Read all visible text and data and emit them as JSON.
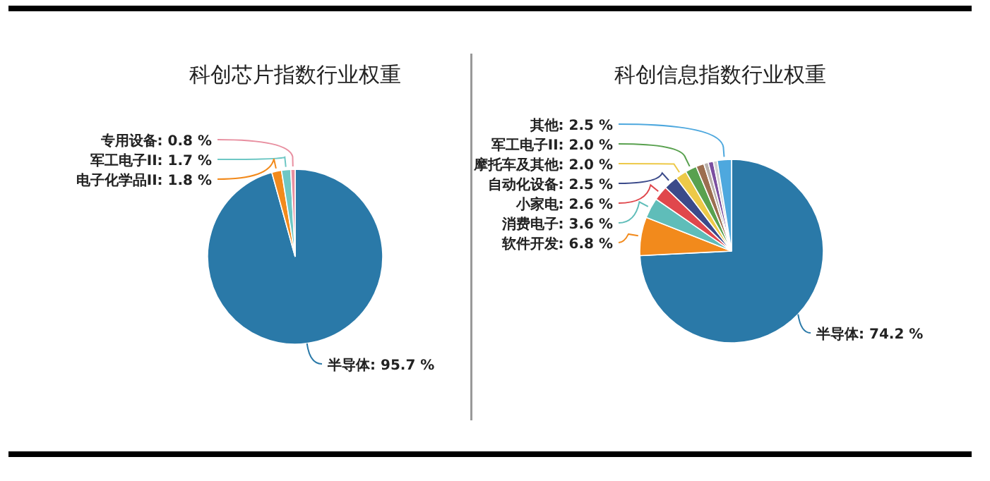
{
  "chart_data": [
    {
      "type": "pie",
      "title": "科创芯片指数行业权重",
      "categories": [
        "半导体",
        "电子化学品II",
        "军工电子II",
        "专用设备"
      ],
      "values": [
        95.7,
        1.8,
        1.7,
        0.8
      ],
      "value_labels": [
        "95.7 %",
        "1.8 %",
        "1.7 %",
        "0.8 %"
      ],
      "colors": [
        "#2a79a8",
        "#f28a1c",
        "#6ec7c4",
        "#e88fa0"
      ]
    },
    {
      "type": "pie",
      "title": "科创信息指数行业权重",
      "categories": [
        "半导体",
        "软件开发",
        "消费电子",
        "小家电",
        "自动化设备",
        "摩托车及其他",
        "军工电子II",
        null,
        null,
        null,
        null,
        "其他"
      ],
      "values": [
        74.2,
        6.8,
        3.6,
        2.6,
        2.5,
        2.0,
        2.0,
        1.4,
        0.8,
        0.9,
        0.7,
        2.5
      ],
      "value_labels": [
        "74.2 %",
        "6.8 %",
        "3.6 %",
        "2.6 %",
        "2.5 %",
        "2.0 %",
        "2.0 %",
        null,
        null,
        null,
        null,
        "2.5 %"
      ],
      "colors": [
        "#2a79a8",
        "#f28a1c",
        "#5fbdb9",
        "#e0474c",
        "#3b4a8a",
        "#edc948",
        "#59a14f",
        "#9c6e50",
        "#b8b0ac",
        "#7b4fa0",
        "#d0d0d0",
        "#4ea8de"
      ]
    }
  ]
}
